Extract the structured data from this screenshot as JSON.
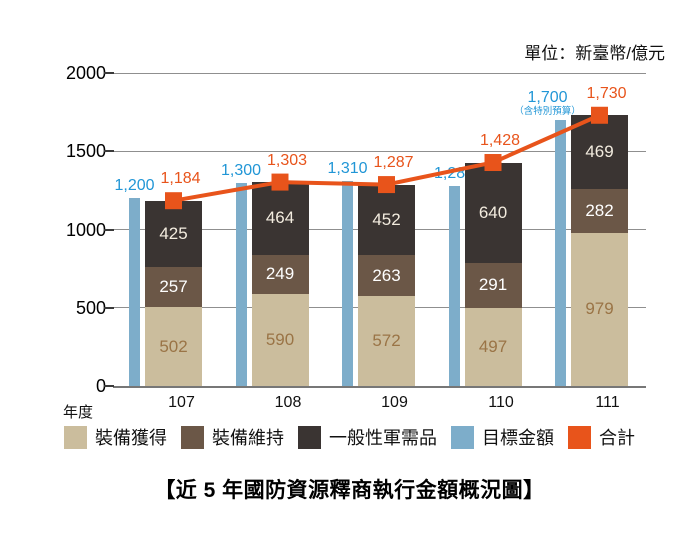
{
  "chart_data": {
    "type": "bar",
    "title": "【近 5 年國防資源釋商執行金額概況圖】",
    "unit_label": "單位：新臺幣/億元",
    "x_axis_label": "年度",
    "categories": [
      "107",
      "108",
      "109",
      "110",
      "111"
    ],
    "series": [
      {
        "name": "裝備獲得",
        "role": "stacked-segment",
        "color": "#cbbd9d",
        "label_color": "#9a7446",
        "values": [
          502,
          590,
          572,
          497,
          979
        ]
      },
      {
        "name": "裝備維持",
        "role": "stacked-segment",
        "color": "#6b5747",
        "label_color": "#ffffff",
        "values": [
          257,
          249,
          263,
          291,
          282
        ]
      },
      {
        "name": "一般性軍需品",
        "role": "stacked-segment",
        "color": "#3a3432",
        "label_color": "#f3ecdf",
        "values": [
          425,
          464,
          452,
          640,
          469
        ]
      },
      {
        "name": "目標金額",
        "role": "target-bar",
        "color": "#7dadca",
        "label_color": "#2196d6",
        "values": [
          1200,
          1300,
          1310,
          1280,
          1700
        ],
        "labels": [
          "1,200",
          "1,300",
          "1,310",
          "1,280",
          "1,700"
        ],
        "note": {
          "index": 4,
          "text": "（含特別預算）"
        }
      },
      {
        "name": "合計",
        "role": "line",
        "color": "#e8541b",
        "label_color": "#e8541b",
        "values": [
          1184,
          1303,
          1287,
          1428,
          1730
        ],
        "labels": [
          "1,184",
          "1,303",
          "1,287",
          "1,428",
          "1,730"
        ]
      }
    ],
    "ylim": [
      0,
      2000
    ],
    "yticks": [
      0,
      500,
      1000,
      1500,
      2000
    ],
    "grid": true,
    "legend_position": "bottom"
  }
}
